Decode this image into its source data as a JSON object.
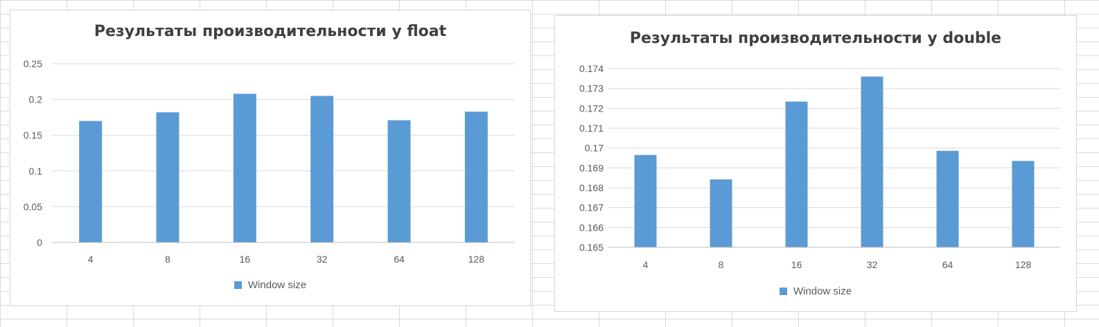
{
  "chart_data": [
    {
      "type": "bar",
      "title": "Результаты производительности у float",
      "categories": [
        "4",
        "8",
        "16",
        "32",
        "64",
        "128"
      ],
      "series": [
        {
          "name": "Window size",
          "values": [
            0.17,
            0.182,
            0.208,
            0.205,
            0.171,
            0.183
          ]
        }
      ],
      "ylim": [
        0,
        0.25
      ],
      "yticks": [
        "0",
        "0.05",
        "0.1",
        "0.15",
        "0.2",
        "0.25"
      ],
      "ytick_values": [
        0,
        0.05,
        0.1,
        0.15,
        0.2,
        0.25
      ],
      "grid": true,
      "legend": "bottom",
      "color": "#5b9bd5"
    },
    {
      "type": "bar",
      "title": "Результаты производительности у double",
      "categories": [
        "4",
        "8",
        "16",
        "32",
        "64",
        "128"
      ],
      "series": [
        {
          "name": "Window size",
          "values": [
            0.16965,
            0.16842,
            0.17234,
            0.1736,
            0.16986,
            0.16935
          ]
        }
      ],
      "ylim": [
        0.165,
        0.174
      ],
      "yticks": [
        "0.165",
        "0.166",
        "0.167",
        "0.168",
        "0.169",
        "0.17",
        "0.171",
        "0.172",
        "0.173",
        "0.174"
      ],
      "ytick_values": [
        0.165,
        0.166,
        0.167,
        0.168,
        0.169,
        0.17,
        0.171,
        0.172,
        0.173,
        0.174
      ],
      "grid": true,
      "legend": "bottom",
      "color": "#5b9bd5"
    }
  ]
}
